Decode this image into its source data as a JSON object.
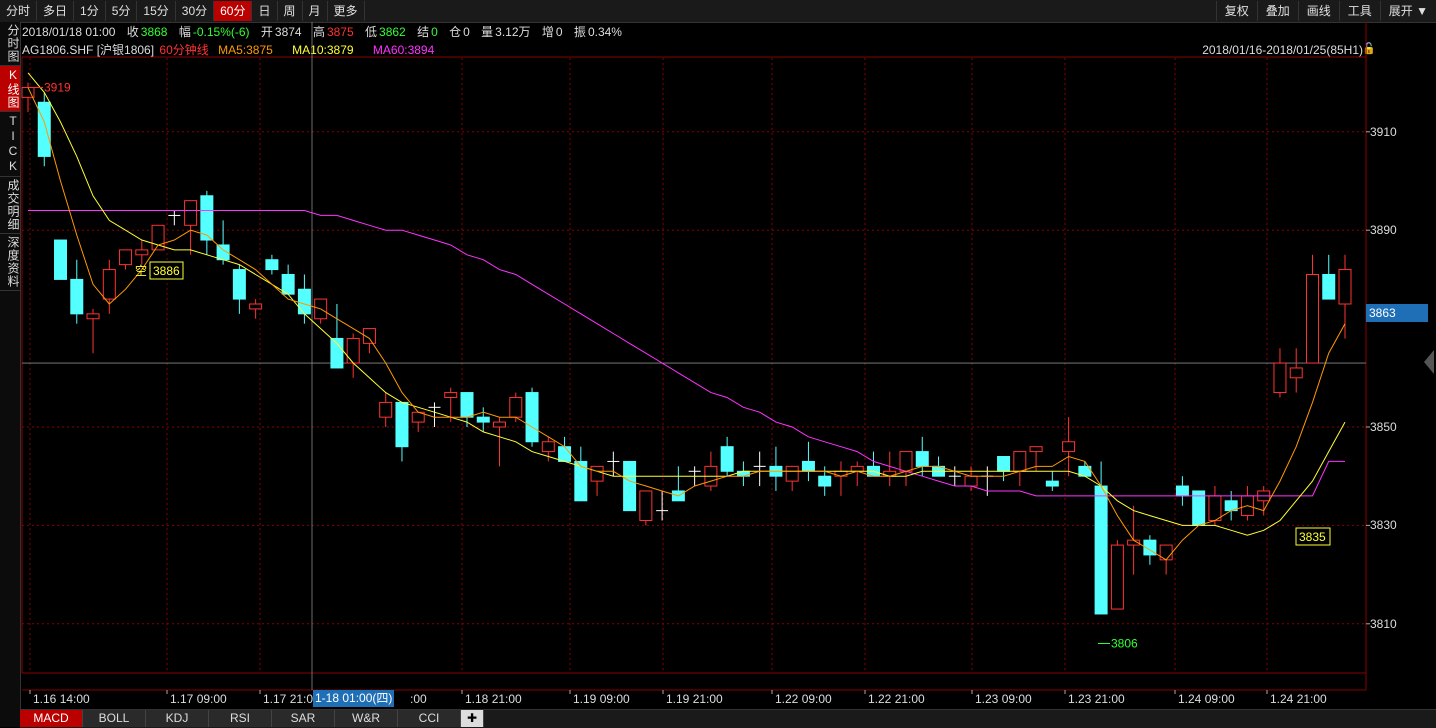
{
  "toolbar": {
    "periods": [
      "分时",
      "多日",
      "1分",
      "5分",
      "15分",
      "30分",
      "60分",
      "日",
      "周",
      "月",
      "更多"
    ],
    "active_period": "60分",
    "right_buttons": [
      "复权",
      "叠加",
      "画线",
      "工具",
      "展开 ▼"
    ]
  },
  "sidebar": {
    "items": [
      "分时图",
      "K线图",
      "TICK",
      "成交明细",
      "深度资料"
    ],
    "active": "K线图"
  },
  "info_bar": {
    "datetime": "2018/01/18 01:00",
    "close_label": "收",
    "close": "3868",
    "change_label": "幅",
    "change": "-0.15%(-6)",
    "open_label": "开",
    "open": "3874",
    "high_label": "高",
    "high": "3875",
    "low_label": "低",
    "low": "3862",
    "settle_label": "结",
    "settle": "0",
    "oi_label": "仓",
    "oi": "0",
    "volume_label": "量",
    "volume": "3.12万",
    "incr_label": "增",
    "incr": "0",
    "amp_label": "振",
    "amp": "0.34%"
  },
  "legend": {
    "symbol": "AG1806.SHF [沪银1806]",
    "period_name": "60分钟线",
    "ma5": "MA5:3875",
    "ma10": "MA10:3879",
    "ma60": "MA60:3894"
  },
  "range_text": "2018/01/16-2018/01/25(85H1)",
  "y_ticks": [
    "3910",
    "3890",
    "3850",
    "3830",
    "3810"
  ],
  "current_price": "3863",
  "x_ticks": [
    "1.16 14:00",
    "1.17 09:00",
    "1.17 21:00",
    "1.18 21:00",
    "1.19 09:00",
    "1.19 21:00",
    "1.22 09:00",
    "1.22 21:00",
    "1.23 09:00",
    "1.23 21:00",
    "1.24 09:00",
    "1.24 21:00"
  ],
  "cursor_label": "1-18 01:00(四)",
  "cursor_label_tail": ":00",
  "annotations": {
    "high_mark": "3919",
    "low_mark": "3806",
    "short_label": "空",
    "short_price": "3886",
    "end_price": "3835"
  },
  "bottom_tabs": [
    "MACD",
    "BOLL",
    "KDJ",
    "RSI",
    "SAR",
    "W&R",
    "CCI",
    "✚"
  ],
  "colors": {
    "up": "#ff3333",
    "down": "#54ffff",
    "ma5": "#ff9900",
    "ma10": "#ffff33",
    "ma60": "#ff33ff",
    "grid": "#8a0000"
  },
  "chart_data": {
    "type": "candlestick",
    "ylim": [
      3800,
      3925
    ],
    "candles": [
      [
        3917,
        3920,
        3914,
        3919
      ],
      [
        3916,
        3918,
        3903,
        3905
      ],
      [
        3888,
        3888,
        3880,
        3880
      ],
      [
        3880,
        3884,
        3871,
        3873
      ],
      [
        3872,
        3874,
        3865,
        3873
      ],
      [
        3876,
        3884,
        3873,
        3882
      ],
      [
        3883,
        3886,
        3882,
        3886
      ],
      [
        3885,
        3888,
        3883,
        3886
      ],
      [
        3886,
        3891,
        3886,
        3891
      ],
      [
        3893,
        3894,
        3891,
        3893
      ],
      [
        3891,
        3896,
        3885,
        3896
      ],
      [
        3897,
        3898,
        3885,
        3888
      ],
      [
        3887,
        3892,
        3883,
        3884
      ],
      [
        3882,
        3883,
        3873,
        3876
      ],
      [
        3874,
        3876,
        3872,
        3875
      ],
      [
        3884,
        3885,
        3881,
        3882
      ],
      [
        3881,
        3883,
        3877,
        3877
      ],
      [
        3878,
        3881,
        3871,
        3873
      ],
      [
        3872,
        3876,
        3871,
        3876
      ],
      [
        3868,
        3875,
        3862,
        3862
      ],
      [
        3863,
        3869,
        3860,
        3868
      ],
      [
        3867,
        3870,
        3865,
        3870
      ],
      [
        3852,
        3857,
        3850,
        3855
      ],
      [
        3855,
        3855,
        3843,
        3846
      ],
      [
        3851,
        3853,
        3849,
        3853
      ],
      [
        3854,
        3855,
        3850,
        3854
      ],
      [
        3856,
        3858,
        3851,
        3857
      ],
      [
        3857,
        3857,
        3850,
        3852
      ],
      [
        3852,
        3854,
        3849,
        3851
      ],
      [
        3850,
        3852,
        3842,
        3851
      ],
      [
        3852,
        3857,
        3851,
        3856
      ],
      [
        3857,
        3858,
        3846,
        3847
      ],
      [
        3845,
        3848,
        3843,
        3847
      ],
      [
        3846,
        3848,
        3844,
        3843
      ],
      [
        3843,
        3846,
        3835,
        3835
      ],
      [
        3839,
        3842,
        3836,
        3842
      ],
      [
        3843,
        3845,
        3840,
        3843
      ],
      [
        3843,
        3843,
        3833,
        3833
      ],
      [
        3831,
        3837,
        3830,
        3837
      ],
      [
        3833,
        3837,
        3831,
        3833
      ],
      [
        3837,
        3842,
        3835,
        3835
      ],
      [
        3841,
        3842,
        3838,
        3841
      ],
      [
        3838,
        3845,
        3837,
        3842
      ],
      [
        3846,
        3848,
        3840,
        3841
      ],
      [
        3841,
        3843,
        3838,
        3840
      ],
      [
        3842,
        3845,
        3838,
        3842
      ],
      [
        3842,
        3846,
        3837,
        3840
      ],
      [
        3839,
        3842,
        3837,
        3842
      ],
      [
        3843,
        3847,
        3839,
        3841
      ],
      [
        3840,
        3842,
        3836,
        3838
      ],
      [
        3840,
        3843,
        3836,
        3841
      ],
      [
        3841,
        3843,
        3838,
        3842
      ],
      [
        3842,
        3845,
        3840,
        3840
      ],
      [
        3840,
        3845,
        3838,
        3841
      ],
      [
        3841,
        3844,
        3838,
        3845
      ],
      [
        3845,
        3848,
        3840,
        3842
      ],
      [
        3842,
        3844,
        3840,
        3840
      ],
      [
        3840,
        3842,
        3838,
        3840
      ],
      [
        3838,
        3842,
        3837,
        3840
      ],
      [
        3840,
        3842,
        3836,
        3840
      ],
      [
        3844,
        3844,
        3839,
        3841
      ],
      [
        3841,
        3845,
        3838,
        3845
      ],
      [
        3845,
        3846,
        3841,
        3846
      ],
      [
        3839,
        3841,
        3837,
        3838
      ],
      [
        3845,
        3852,
        3840,
        3847
      ],
      [
        3842,
        3843,
        3840,
        3840
      ],
      [
        3838,
        3843,
        3812,
        3812
      ],
      [
        3813,
        3827,
        3813,
        3826
      ],
      [
        3826,
        3834,
        3820,
        3827
      ],
      [
        3827,
        3828,
        3822,
        3824
      ],
      [
        3823,
        3826,
        3820,
        3826
      ],
      [
        3838,
        3840,
        3834,
        3836
      ],
      [
        3837,
        3837,
        3830,
        3830
      ],
      [
        3831,
        3838,
        3830,
        3836
      ],
      [
        3835,
        3837,
        3831,
        3833
      ],
      [
        3832,
        3838,
        3831,
        3836
      ],
      [
        3835,
        3838,
        3832,
        3837
      ],
      [
        3857,
        3866,
        3856,
        3863
      ],
      [
        3860,
        3866,
        3857,
        3862
      ],
      [
        3863,
        3885,
        3863,
        3881
      ],
      [
        3881,
        3885,
        3877,
        3876
      ],
      [
        3875,
        3885,
        3868,
        3882
      ]
    ],
    "ma5": [
      3919,
      3912,
      3900,
      3889,
      3879,
      3875,
      3878,
      3882,
      3887,
      3888,
      3890,
      3889,
      3886,
      3884,
      3882,
      3879,
      3876,
      3875,
      3874,
      3872,
      3870,
      3868,
      3863,
      3857,
      3853,
      3852,
      3852,
      3852,
      3853,
      3852,
      3852,
      3850,
      3848,
      3846,
      3842,
      3841,
      3841,
      3839,
      3838,
      3837,
      3836,
      3838,
      3839,
      3840,
      3840,
      3841,
      3841,
      3841,
      3841,
      3841,
      3840,
      3841,
      3840,
      3840,
      3841,
      3842,
      3842,
      3841,
      3840,
      3840,
      3840,
      3841,
      3842,
      3842,
      3844,
      3843,
      3838,
      3832,
      3827,
      3825,
      3823,
      3827,
      3830,
      3831,
      3833,
      3834,
      3833,
      3839,
      3846,
      3855,
      3865,
      3871
    ],
    "ma10": [
      3922,
      3918,
      3912,
      3905,
      3897,
      3892,
      3890,
      3888,
      3887,
      3886,
      3886,
      3885,
      3884,
      3883,
      3881,
      3879,
      3877,
      3873,
      3870,
      3867,
      3863,
      3860,
      3857,
      3855,
      3854,
      3853,
      3852,
      3851,
      3849,
      3848,
      3847,
      3845,
      3844,
      3843,
      3842,
      3841,
      3840,
      3840,
      3840,
      3840,
      3840,
      3840,
      3840,
      3840,
      3841,
      3841,
      3841,
      3841,
      3841,
      3841,
      3841,
      3841,
      3841,
      3840,
      3840,
      3841,
      3841,
      3841,
      3841,
      3841,
      3841,
      3841,
      3841,
      3841,
      3841,
      3840,
      3838,
      3835,
      3833,
      3832,
      3831,
      3830,
      3830,
      3830,
      3829,
      3828,
      3829,
      3831,
      3835,
      3839,
      3845,
      3851
    ],
    "ma60": [
      3894,
      3894,
      3894,
      3894,
      3894,
      3894,
      3894,
      3894,
      3894,
      3894,
      3894,
      3894,
      3894,
      3894,
      3894,
      3894,
      3894,
      3894,
      3893,
      3893,
      3892,
      3891,
      3890,
      3890,
      3889,
      3888,
      3887,
      3885,
      3884,
      3882,
      3881,
      3879,
      3877,
      3875,
      3873,
      3871,
      3869,
      3867,
      3865,
      3863,
      3861,
      3859,
      3857,
      3856,
      3854,
      3853,
      3851,
      3850,
      3848,
      3847,
      3846,
      3845,
      3843,
      3842,
      3841,
      3840,
      3839,
      3838,
      3838,
      3837,
      3837,
      3837,
      3836,
      3836,
      3836,
      3836,
      3836,
      3836,
      3836,
      3836,
      3836,
      3836,
      3836,
      3836,
      3836,
      3836,
      3836,
      3836,
      3836,
      3836,
      3843,
      3843
    ]
  }
}
